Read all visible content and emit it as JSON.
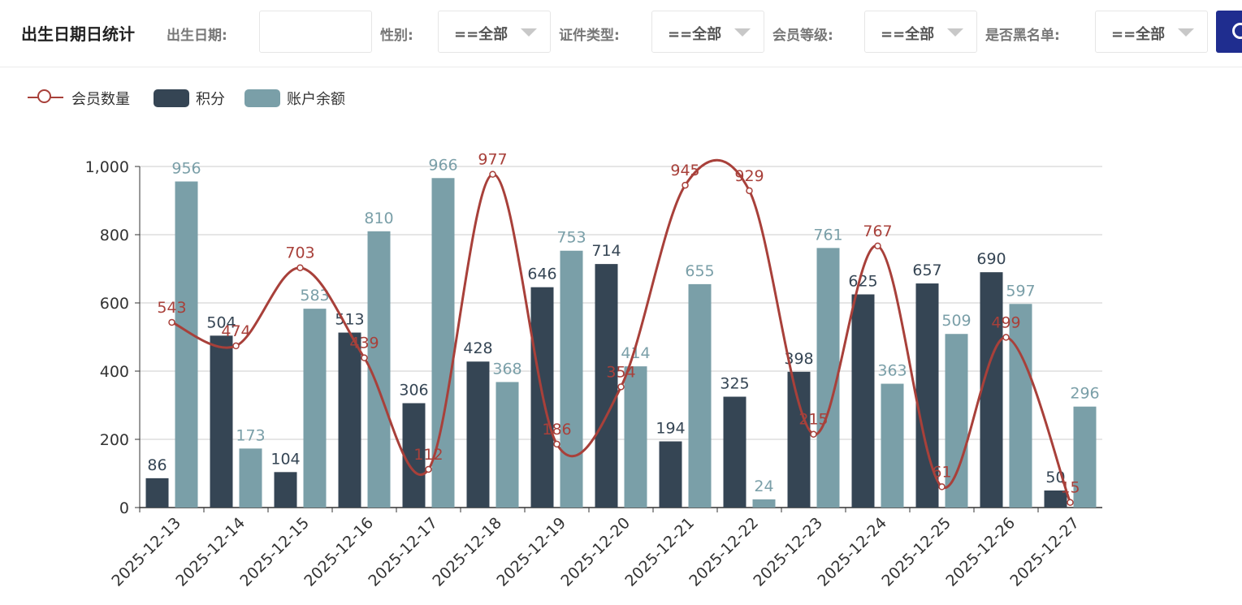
{
  "header": {
    "title": "出生日期日统计",
    "filters": {
      "birth_date": {
        "label": "出生日期:",
        "value": ""
      },
      "gender": {
        "label": "性别:",
        "value": "==全部"
      },
      "id_type": {
        "label": "证件类型:",
        "value": "==全部"
      },
      "member_level": {
        "label": "会员等级:",
        "value": "==全部"
      },
      "blacklist": {
        "label": "是否黑名单:",
        "value": "==全部"
      }
    }
  },
  "colors": {
    "line": "#a8403a",
    "points": "#354554",
    "balance": "#7a9fa8"
  },
  "chart_data": {
    "type": "bar",
    "categories": [
      "2025-12-13",
      "2025-12-14",
      "2025-12-15",
      "2025-12-16",
      "2025-12-17",
      "2025-12-18",
      "2025-12-19",
      "2025-12-20",
      "2025-12-21",
      "2025-12-22",
      "2025-12-23",
      "2025-12-24",
      "2025-12-25",
      "2025-12-26",
      "2025-12-27"
    ],
    "series": [
      {
        "name": "会员数量",
        "type": "line",
        "values": [
          543,
          474,
          703,
          439,
          112,
          977,
          186,
          354,
          945,
          929,
          215,
          767,
          61,
          499,
          15
        ]
      },
      {
        "name": "积分",
        "type": "bar",
        "values": [
          86,
          504,
          104,
          513,
          306,
          428,
          646,
          714,
          194,
          325,
          398,
          625,
          657,
          690,
          50
        ]
      },
      {
        "name": "账户余额",
        "type": "bar",
        "values": [
          956,
          173,
          583,
          810,
          966,
          368,
          753,
          414,
          655,
          24,
          761,
          363,
          509,
          597,
          296
        ]
      }
    ],
    "yticks": [
      "0",
      "200",
      "400",
      "600",
      "800",
      "1,000"
    ],
    "ylim": [
      0,
      1000
    ],
    "legend_position": "top-left",
    "grid": true
  }
}
